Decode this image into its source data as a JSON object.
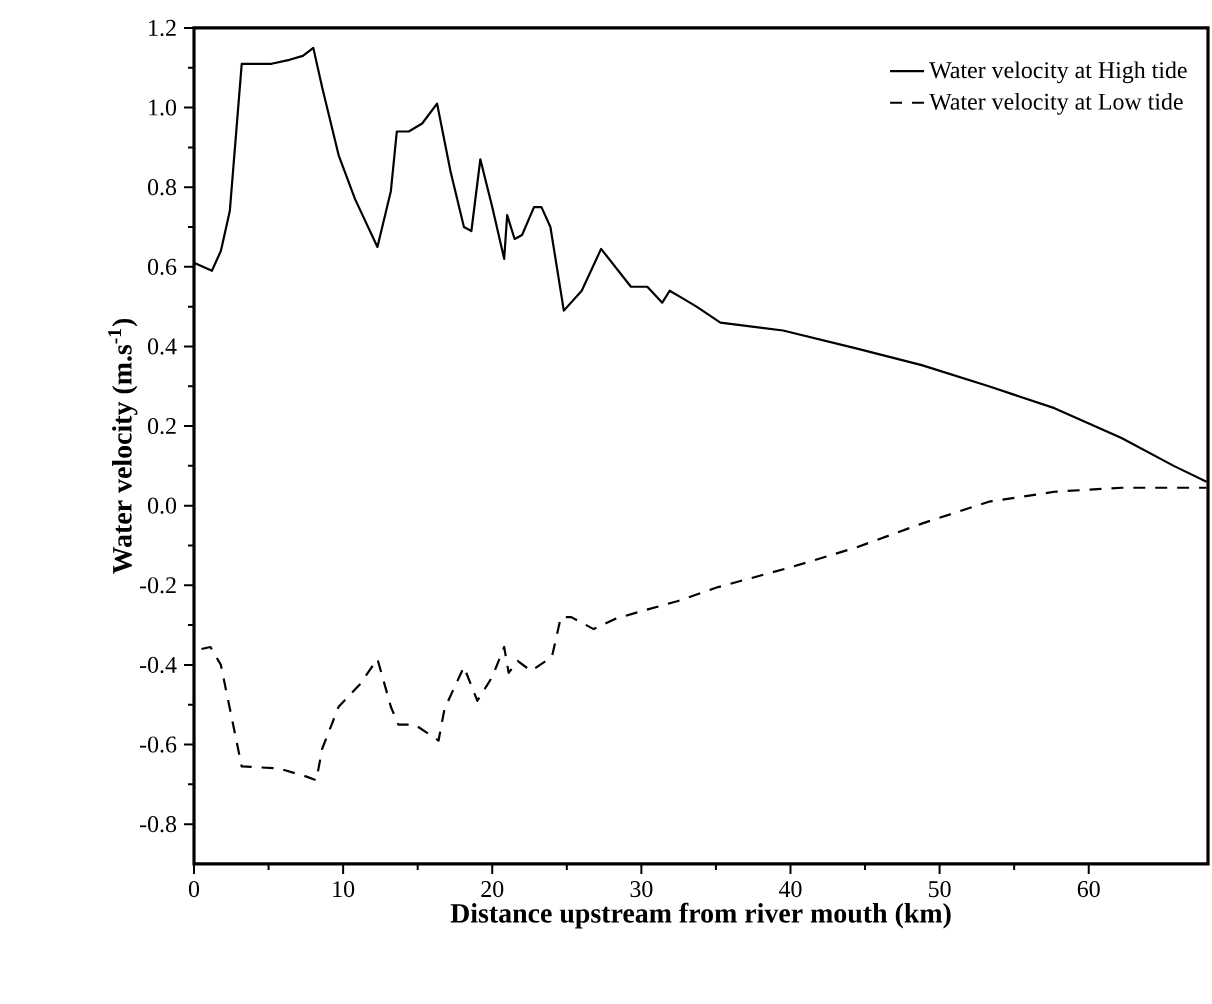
{
  "chart_data": {
    "type": "line",
    "xlabel": "Distance upstream from river mouth (km)",
    "ylabel": "Water velocity (m.s$^{-1}$)",
    "xlim": [
      0,
      68
    ],
    "ylim": [
      -0.9,
      1.2
    ],
    "xticks": [
      0,
      10,
      20,
      30,
      40,
      50,
      60
    ],
    "yticks": [
      1.2,
      {
        "value": 1,
        "label": "1.0"
      },
      0.8,
      0.6,
      0.4,
      0.2,
      {
        "value": 0,
        "label": "0.0"
      },
      -0.2,
      -0.4,
      -0.6,
      -0.8
    ],
    "legend": "top right",
    "marker": "none",
    "grid": false,
    "series": [
      {
        "name": "Water velocity at High tide",
        "color": "#000000",
        "line_style": "solid",
        "x": [
          0,
          1.2,
          1.8,
          2.4,
          3.2,
          5.2,
          6.4,
          7.3,
          8.0,
          8.6,
          9.7,
          10.8,
          12.3,
          13.2,
          13.6,
          14.4,
          15.3,
          16.3,
          17.2,
          18.1,
          18.6,
          19.2,
          20.0,
          20.8,
          21.0,
          21.5,
          22.0,
          22.8,
          23.3,
          23.9,
          24.8,
          26.0,
          27.3,
          29.3,
          30.4,
          31.4,
          31.9,
          32.8,
          33.7,
          35.3,
          39.5,
          44.4,
          48.8,
          53.3,
          57.7,
          62.2,
          65.7,
          67.9
        ],
        "values": [
          0.61,
          0.59,
          0.64,
          0.74,
          1.11,
          1.11,
          1.12,
          1.13,
          1.15,
          1.05,
          0.88,
          0.77,
          0.65,
          0.79,
          0.94,
          0.94,
          0.96,
          1.01,
          0.84,
          0.7,
          0.69,
          0.87,
          0.75,
          0.62,
          0.73,
          0.67,
          0.68,
          0.75,
          0.75,
          0.7,
          0.49,
          0.54,
          0.645,
          0.55,
          0.55,
          0.51,
          0.54,
          0.52,
          0.5,
          0.46,
          0.44,
          0.395,
          0.353,
          0.3,
          0.245,
          0.17,
          0.1,
          0.06
        ]
      },
      {
        "name": "Water velocity at Low tide",
        "color": "#000000",
        "line_style": "dashed",
        "x": [
          0.5,
          1.1,
          1.8,
          3.2,
          5.7,
          7.5,
          8.2,
          8.6,
          9.7,
          11.1,
          12.3,
          13.2,
          13.7,
          14.8,
          16.4,
          16.8,
          18.1,
          19.0,
          20.0,
          20.8,
          21.1,
          21.7,
          22.6,
          24.0,
          24.6,
          25.3,
          26.8,
          28.2,
          30.0,
          32.4,
          35.1,
          40.0,
          44.4,
          48.8,
          53.3,
          57.7,
          62.2,
          66.6,
          67.9
        ],
        "values": [
          -0.36,
          -0.355,
          -0.4,
          -0.655,
          -0.66,
          -0.68,
          -0.69,
          -0.61,
          -0.505,
          -0.45,
          -0.385,
          -0.505,
          -0.55,
          -0.55,
          -0.59,
          -0.51,
          -0.405,
          -0.49,
          -0.43,
          -0.355,
          -0.42,
          -0.39,
          -0.415,
          -0.38,
          -0.28,
          -0.28,
          -0.31,
          -0.285,
          -0.265,
          -0.24,
          -0.205,
          -0.155,
          -0.105,
          -0.045,
          0.01,
          0.035,
          0.045,
          0.045,
          0.045
        ]
      }
    ]
  }
}
